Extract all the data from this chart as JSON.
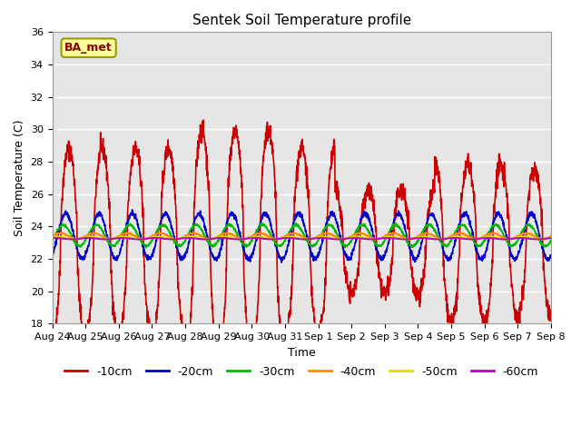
{
  "title": "Sentek Soil Temperature profile",
  "xlabel": "Time",
  "ylabel": "Soil Temperature (C)",
  "ylim": [
    18,
    36
  ],
  "background_color": "#e5e5e5",
  "legend_label": "BA_met",
  "legend_bg": "#ffff99",
  "legend_border": "#999900",
  "x_tick_labels": [
    "Aug 24",
    "Aug 25",
    "Aug 26",
    "Aug 27",
    "Aug 28",
    "Aug 29",
    "Aug 30",
    "Aug 31",
    "Sep 1",
    "Sep 2",
    "Sep 3",
    "Sep 4",
    "Sep 5",
    "Sep 6",
    "Sep 7",
    "Sep 8"
  ],
  "series": [
    {
      "label": "-10cm",
      "color": "#cc0000",
      "linewidth": 1.2,
      "amplitude": 5.8,
      "base": 23.0,
      "phase_shift": -1.5707963,
      "noise": 0.3
    },
    {
      "label": "-20cm",
      "color": "#0000cc",
      "linewidth": 1.2,
      "amplitude": 1.4,
      "base": 23.4,
      "phase_shift": -1.0,
      "noise": 0.08
    },
    {
      "label": "-30cm",
      "color": "#00bb00",
      "linewidth": 1.2,
      "amplitude": 0.65,
      "base": 23.45,
      "phase_shift": -0.5,
      "noise": 0.04
    },
    {
      "label": "-40cm",
      "color": "#ff8800",
      "linewidth": 1.4,
      "amplitude": 0.18,
      "base": 23.4,
      "phase_shift": 0.0,
      "noise": 0.01
    },
    {
      "label": "-50cm",
      "color": "#dddd00",
      "linewidth": 1.4,
      "amplitude": 0.08,
      "base": 23.3,
      "phase_shift": 0.5,
      "noise": 0.005
    },
    {
      "label": "-60cm",
      "color": "#bb00bb",
      "linewidth": 1.4,
      "amplitude": 0.04,
      "base": 23.25,
      "phase_shift": 1.0,
      "noise": 0.002
    }
  ]
}
